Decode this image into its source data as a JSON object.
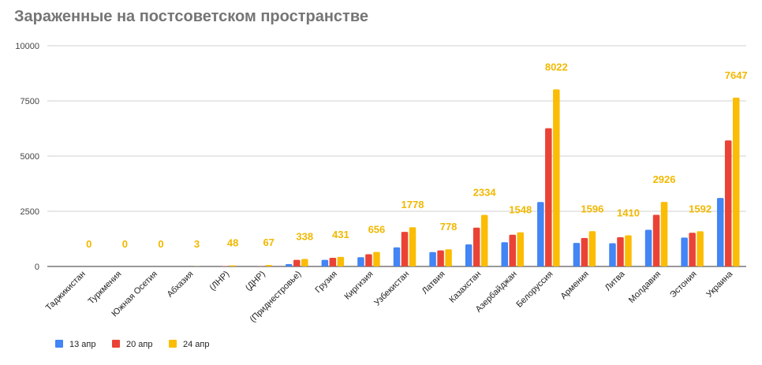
{
  "chart_data": {
    "type": "bar",
    "title": "Зараженные на постсоветском пространстве",
    "xlabel": "",
    "ylabel": "",
    "ylim": [
      0,
      10000
    ],
    "yticks": [
      0,
      2500,
      5000,
      7500,
      10000
    ],
    "grid": true,
    "legend_position": "bottom-left",
    "categories": [
      "Таджикистан",
      "Туркмения",
      "Южная Осетия",
      "Абхазия",
      "(ЛНР)",
      "(ДНР)",
      "(Приднестровье)",
      "Грузия",
      "Киргизия",
      "Узбекистан",
      "Латвия",
      "Казахстан",
      "Азербайджан",
      "Белоруссия",
      "Армения",
      "Литва",
      "Молдавия",
      "Эстония",
      "Украина"
    ],
    "series": [
      {
        "name": "13 апр",
        "color": "#4285f4",
        "values": [
          0,
          0,
          0,
          0,
          0,
          0,
          107,
          300,
          419,
          865,
          651,
          1000,
          1098,
          2919,
          1067,
          1053,
          1662,
          1309,
          3102
        ]
      },
      {
        "name": "20 апр",
        "color": "#ea4335",
        "values": [
          0,
          0,
          0,
          2,
          15,
          10,
          300,
          394,
          554,
          1565,
          727,
          1757,
          1436,
          6264,
          1291,
          1326,
          2338,
          1528,
          5710
        ]
      },
      {
        "name": "24 апр",
        "color": "#fbbc04",
        "values": [
          0,
          0,
          0,
          3,
          48,
          67,
          338,
          431,
          656,
          1778,
          778,
          2334,
          1548,
          8022,
          1596,
          1410,
          2926,
          1592,
          7647
        ]
      }
    ],
    "data_labels": [
      "0",
      "0",
      "0",
      "3",
      "48",
      "67",
      "338",
      "431",
      "656",
      "1778",
      "778",
      "2334",
      "1548",
      "8022",
      "1596",
      "1410",
      "2926",
      "1592",
      "7647"
    ]
  }
}
